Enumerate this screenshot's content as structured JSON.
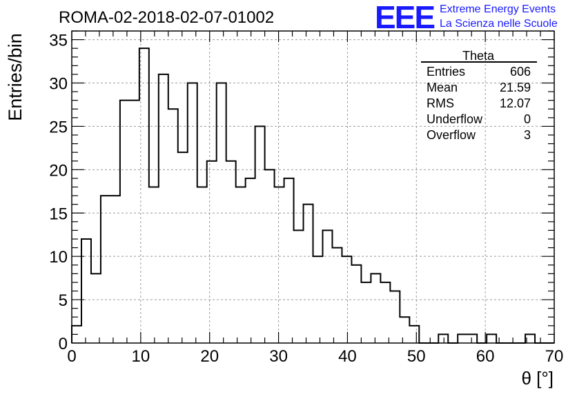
{
  "header": {
    "run_title": "ROMA-02-2018-02-07-01002",
    "logo_mark": "EEE",
    "logo_line1": "Extreme Energy Events",
    "logo_line2": "La Scienza nelle Scuole"
  },
  "stats_box": {
    "title": "Theta",
    "rows": [
      {
        "label": "Entries",
        "value": "606"
      },
      {
        "label": "Mean",
        "value": "21.59"
      },
      {
        "label": "RMS",
        "value": "12.07"
      },
      {
        "label": "Underflow",
        "value": "0"
      },
      {
        "label": "Overflow",
        "value": "3"
      }
    ]
  },
  "chart_data": {
    "type": "histogram",
    "xlabel": "θ [°]",
    "ylabel": "Entries/bin",
    "xlim": [
      0,
      70
    ],
    "ylim": [
      0,
      36
    ],
    "bin_width": 1.4,
    "grid": true,
    "xticks": [
      "0",
      "10",
      "20",
      "30",
      "40",
      "50",
      "60",
      "70"
    ],
    "yticks": [
      "0",
      "5",
      "10",
      "15",
      "20",
      "25",
      "30",
      "35"
    ],
    "values": [
      2,
      12,
      8,
      17,
      17,
      28,
      28,
      34,
      18,
      31,
      27,
      22,
      30,
      18,
      21,
      30,
      21,
      18,
      19,
      25,
      20,
      18,
      19,
      13,
      16,
      10,
      13,
      11,
      10,
      9,
      7,
      8,
      7,
      6,
      3,
      2,
      0,
      0,
      1,
      0,
      1,
      1,
      0,
      1,
      0,
      0,
      0,
      1,
      0,
      0
    ],
    "line_color": "#000000"
  }
}
